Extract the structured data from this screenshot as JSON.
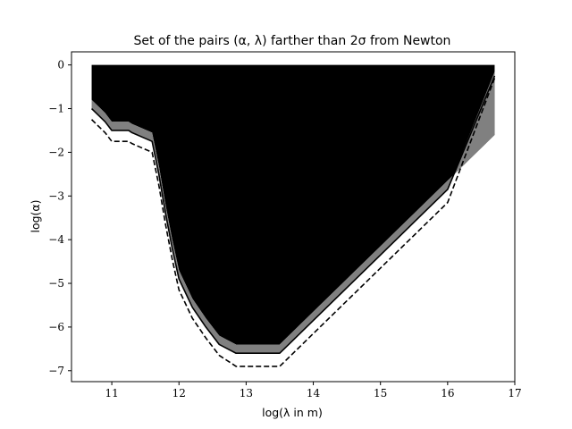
{
  "chart_data": {
    "type": "area",
    "title": "Set of the pairs (α, λ) farther than 2σ from Newton",
    "xlabel": "log(λ in m)",
    "ylabel": "log(α)",
    "xlim": [
      10.4,
      17.0
    ],
    "ylim": [
      -7.25,
      0.3
    ],
    "xticks": [
      11,
      12,
      13,
      14,
      15,
      16,
      17
    ],
    "yticks": [
      0,
      -1,
      -2,
      -3,
      -4,
      -5,
      -6,
      -7
    ],
    "xtick_labels": [
      "11",
      "12",
      "13",
      "14",
      "15",
      "16",
      "17"
    ],
    "ytick_labels": [
      "0",
      "−1",
      "−2",
      "−3",
      "−4",
      "−5",
      "−6",
      "−7"
    ],
    "grid": false,
    "series": [
      {
        "style": "filled-region",
        "fill": "#000000",
        "x": [
          10.7,
          10.7,
          10.9,
          11.0,
          11.25,
          11.3,
          11.6,
          11.7,
          11.8,
          11.9,
          12.0,
          12.2,
          12.4,
          12.6,
          12.85,
          13.0,
          13.3,
          13.5,
          14.0,
          14.5,
          15.0,
          15.5,
          16.0,
          16.7,
          16.7
        ],
        "y": [
          0.0,
          -0.8,
          -1.1,
          -1.3,
          -1.3,
          -1.35,
          -1.55,
          -2.3,
          -3.2,
          -4.0,
          -4.7,
          -5.35,
          -5.8,
          -6.2,
          -6.4,
          -6.4,
          -6.4,
          -6.4,
          -5.65,
          -4.9,
          -4.15,
          -3.4,
          -2.65,
          -1.6,
          0.0
        ]
      },
      {
        "style": "band",
        "fill": "#808080",
        "x": [
          10.7,
          10.9,
          11.0,
          11.25,
          11.3,
          11.6,
          11.7,
          11.8,
          11.9,
          12.0,
          12.2,
          12.4,
          12.6,
          12.85,
          13.0,
          13.3,
          13.5,
          14.0,
          14.5,
          15.0,
          15.5,
          16.0,
          16.7
        ],
        "y_upper": [
          -0.8,
          -1.1,
          -1.3,
          -1.3,
          -1.35,
          -1.55,
          -2.3,
          -3.2,
          -4.0,
          -4.7,
          -5.35,
          -5.8,
          -6.2,
          -6.4,
          -6.4,
          -6.4,
          -6.4,
          -5.65,
          -4.9,
          -4.15,
          -3.4,
          -2.65,
          -1.6
        ],
        "y_lower": [
          -1.0,
          -1.3,
          -1.5,
          -1.5,
          -1.55,
          -1.75,
          -2.5,
          -3.4,
          -4.2,
          -4.9,
          -5.55,
          -6.0,
          -6.4,
          -6.6,
          -6.6,
          -6.6,
          -6.6,
          -5.85,
          -5.1,
          -4.35,
          -3.6,
          -2.85,
          -0.15
        ]
      },
      {
        "style": "solid-line",
        "stroke": "#000000",
        "x": [
          10.7,
          10.9,
          11.0,
          11.25,
          11.3,
          11.6,
          11.7,
          11.8,
          11.9,
          12.0,
          12.2,
          12.4,
          12.6,
          12.85,
          13.0,
          13.3,
          13.5,
          14.0,
          14.5,
          15.0,
          15.5,
          16.0,
          16.7
        ],
        "y": [
          -1.0,
          -1.3,
          -1.5,
          -1.5,
          -1.55,
          -1.75,
          -2.5,
          -3.4,
          -4.2,
          -4.9,
          -5.55,
          -6.0,
          -6.4,
          -6.6,
          -6.6,
          -6.6,
          -6.6,
          -5.85,
          -5.1,
          -4.35,
          -3.6,
          -2.85,
          -0.25
        ]
      },
      {
        "style": "dashed-line",
        "stroke": "#000000",
        "x": [
          10.7,
          10.9,
          11.0,
          11.25,
          11.3,
          11.6,
          11.7,
          11.8,
          11.9,
          12.0,
          12.2,
          12.4,
          12.6,
          12.85,
          13.0,
          13.3,
          13.5,
          14.0,
          14.5,
          15.0,
          15.5,
          16.0,
          16.7
        ],
        "y": [
          -1.25,
          -1.55,
          -1.75,
          -1.75,
          -1.8,
          -2.0,
          -2.75,
          -3.65,
          -4.45,
          -5.15,
          -5.8,
          -6.25,
          -6.65,
          -6.9,
          -6.9,
          -6.9,
          -6.9,
          -6.15,
          -5.4,
          -4.65,
          -3.9,
          -3.15,
          -0.3
        ]
      }
    ]
  }
}
